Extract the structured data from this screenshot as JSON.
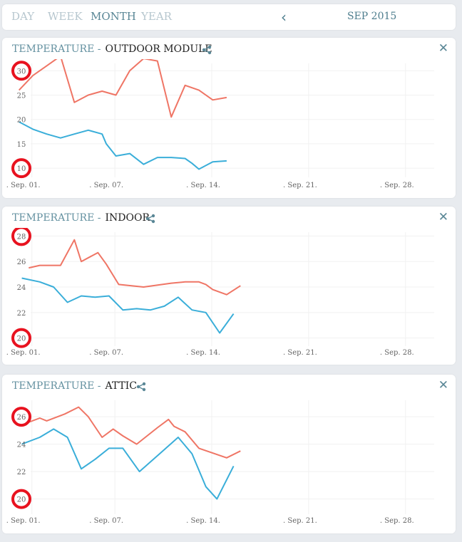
{
  "header": {
    "ranges": [
      "DAY",
      "WEEK",
      "MONTH",
      "YEAR"
    ],
    "active_range": "MONTH",
    "period": "SEP 2015"
  },
  "colors": {
    "max_line": "#ef7565",
    "min_line": "#3aaed9",
    "highlight": "#e8121f"
  },
  "icons": {
    "prev": "chevron-left-icon",
    "share": "share-icon",
    "close": "close-icon"
  },
  "chart_data": [
    {
      "type": "line",
      "title_prefix": "TEMPERATURE -",
      "title": "OUTDOOR MODULE",
      "xlabel": "",
      "ylabel": "",
      "xlim": [
        0.5,
        31
      ],
      "ylim": [
        9,
        31.5
      ],
      "x_ticks": [
        {
          "x": 1,
          "label": ". Sep. 01."
        },
        {
          "x": 7,
          "label": ". Sep. 07."
        },
        {
          "x": 14,
          "label": ". Sep. 14."
        },
        {
          "x": 21,
          "label": ". Sep. 21."
        },
        {
          "x": 28,
          "label": ". Sep. 28."
        }
      ],
      "y_ticks": [
        10,
        15,
        20,
        25,
        30
      ],
      "highlighted_ticks": [
        10,
        30
      ],
      "grid": true,
      "series": [
        {
          "color": "#ef7565",
          "values": [
            [
              1,
              26
            ],
            [
              2,
              29
            ],
            [
              3,
              31
            ],
            [
              4,
              33
            ],
            [
              5,
              23.5
            ],
            [
              6,
              25
            ],
            [
              7,
              25.8
            ],
            [
              8,
              25
            ],
            [
              9,
              30
            ],
            [
              10,
              32.5
            ],
            [
              11,
              32
            ],
            [
              12,
              20.5
            ],
            [
              13,
              27
            ],
            [
              14,
              26
            ],
            [
              15,
              24
            ],
            [
              16,
              24.5
            ]
          ]
        },
        {
          "color": "#3aaed9",
          "values": [
            [
              1,
              19.5
            ],
            [
              2,
              18
            ],
            [
              3,
              17
            ],
            [
              4,
              16.2
            ],
            [
              5,
              17
            ],
            [
              6,
              17.8
            ],
            [
              7,
              17
            ],
            [
              7.3,
              15
            ],
            [
              8,
              12.5
            ],
            [
              9,
              13
            ],
            [
              10,
              10.8
            ],
            [
              11,
              12.2
            ],
            [
              12,
              12.2
            ],
            [
              13,
              12
            ],
            [
              13.5,
              11
            ],
            [
              14,
              9.8
            ],
            [
              15,
              11.3
            ],
            [
              16,
              11.5
            ]
          ]
        }
      ]
    },
    {
      "type": "line",
      "title_prefix": "TEMPERATURE -",
      "title": "INDOOR",
      "xlabel": "",
      "ylabel": "",
      "xlim": [
        0.5,
        31
      ],
      "ylim": [
        19.7,
        28.3
      ],
      "x_ticks": [
        {
          "x": 1,
          "label": ". Sep. 01."
        },
        {
          "x": 7,
          "label": ". Sep. 07."
        },
        {
          "x": 14,
          "label": ". Sep. 14."
        },
        {
          "x": 21,
          "label": ". Sep. 21."
        },
        {
          "x": 28,
          "label": ". Sep. 28."
        }
      ],
      "y_ticks": [
        20,
        22,
        24,
        26,
        28
      ],
      "highlighted_ticks": [
        20,
        28
      ],
      "grid": true,
      "series": [
        {
          "color": "#ef7565",
          "values": [
            [
              1.7,
              25.5
            ],
            [
              2.5,
              25.7
            ],
            [
              4,
              25.7
            ],
            [
              5,
              27.7
            ],
            [
              5.5,
              26
            ],
            [
              6.7,
              26.7
            ],
            [
              7.3,
              25.8
            ],
            [
              8.2,
              24.2
            ],
            [
              10,
              24
            ],
            [
              12,
              24.3
            ],
            [
              13,
              24.4
            ],
            [
              14,
              24.4
            ],
            [
              14.5,
              24.2
            ],
            [
              15,
              23.8
            ],
            [
              16,
              23.4
            ],
            [
              17,
              24.1
            ]
          ]
        },
        {
          "color": "#3aaed9",
          "values": [
            [
              1.2,
              24.7
            ],
            [
              2.5,
              24.4
            ],
            [
              3.5,
              24
            ],
            [
              4.5,
              22.8
            ],
            [
              5.5,
              23.3
            ],
            [
              6.5,
              23.2
            ],
            [
              7.5,
              23.3
            ],
            [
              8.5,
              22.2
            ],
            [
              9.5,
              22.3
            ],
            [
              10.5,
              22.2
            ],
            [
              11.5,
              22.5
            ],
            [
              12.5,
              23.2
            ],
            [
              13.5,
              22.2
            ],
            [
              14.5,
              22
            ],
            [
              15.5,
              20.4
            ],
            [
              16.5,
              21.9
            ]
          ]
        }
      ]
    },
    {
      "type": "line",
      "title_prefix": "TEMPERATURE -",
      "title": "ATTIC",
      "xlabel": "",
      "ylabel": "",
      "xlim": [
        0.5,
        31
      ],
      "ylim": [
        19.2,
        27.2
      ],
      "x_ticks": [
        {
          "x": 1,
          "label": ". Sep. 01."
        },
        {
          "x": 7,
          "label": ". Sep. 07."
        },
        {
          "x": 14,
          "label": ". Sep. 14."
        },
        {
          "x": 21,
          "label": ". Sep. 21."
        },
        {
          "x": 28,
          "label": ". Sep. 28."
        }
      ],
      "y_ticks": [
        20,
        22,
        24,
        26
      ],
      "highlighted_ticks": [
        20,
        26
      ],
      "grid": true,
      "series": [
        {
          "color": "#ef7565",
          "values": [
            [
              1.7,
              25.6
            ],
            [
              2.5,
              25.9
            ],
            [
              3,
              25.7
            ],
            [
              4.3,
              26.2
            ],
            [
              5.3,
              26.7
            ],
            [
              6,
              26
            ],
            [
              7,
              24.5
            ],
            [
              7.8,
              25.1
            ],
            [
              8.5,
              24.6
            ],
            [
              9.5,
              24
            ],
            [
              11,
              25.2
            ],
            [
              11.8,
              25.8
            ],
            [
              12.2,
              25.3
            ],
            [
              13,
              24.9
            ],
            [
              14,
              23.7
            ],
            [
              16,
              23
            ],
            [
              17,
              23.5
            ]
          ]
        },
        {
          "color": "#3aaed9",
          "values": [
            [
              1.2,
              24
            ],
            [
              2.5,
              24.5
            ],
            [
              3.5,
              25.1
            ],
            [
              4.5,
              24.5
            ],
            [
              5.5,
              22.2
            ],
            [
              6.5,
              22.9
            ],
            [
              7.5,
              23.7
            ],
            [
              8.5,
              23.7
            ],
            [
              9.7,
              22
            ],
            [
              11.5,
              23.6
            ],
            [
              12.5,
              24.5
            ],
            [
              13.5,
              23.3
            ],
            [
              14.5,
              20.9
            ],
            [
              15.3,
              20
            ],
            [
              16.5,
              22.4
            ]
          ]
        }
      ]
    }
  ]
}
